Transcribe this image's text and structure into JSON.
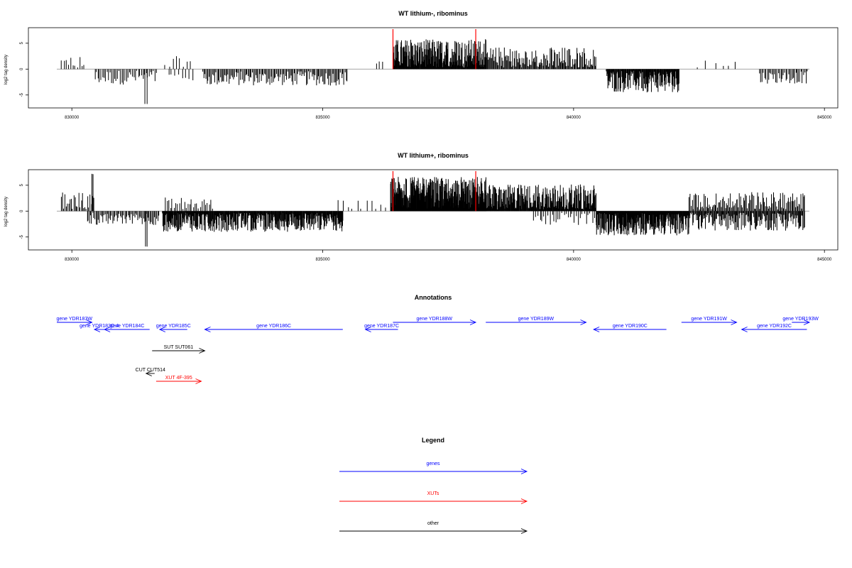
{
  "chart_data": [
    {
      "type": "bar",
      "title": "WT lithium-, ribominus",
      "xlabel": "",
      "ylabel": "log2 tag density",
      "xlim": [
        829700,
        844700
      ],
      "ylim": [
        -7.5,
        8
      ],
      "x_ticks": [
        830000,
        835000,
        840000,
        845000
      ],
      "x_tick_labels": [
        "830000",
        "835000",
        "840000",
        "845000"
      ],
      "y_ticks": [
        -5,
        0,
        5
      ],
      "y_tick_labels": [
        "-5",
        "0",
        "5"
      ],
      "baseline": 0,
      "region_markers": [
        836400,
        838050
      ],
      "region_marker_color": "#ff0000",
      "bar_color": "#000000",
      "segments": [
        {
          "x": [
            829780,
            830250
          ],
          "mean": 1.2,
          "amp": 1.5,
          "spacing": 45,
          "sign": 1
        },
        {
          "x": [
            830450,
            831700
          ],
          "mean": -1.6,
          "amp": 1.4,
          "spacing": 30,
          "sign": -1
        },
        {
          "x": [
            831450,
            831500
          ],
          "mean": -6.8,
          "amp": 0.1,
          "spacing": 40,
          "sign": -1
        },
        {
          "x": [
            831850,
            832400
          ],
          "mean": 1.0,
          "amp": 1.5,
          "spacing": 70,
          "sign": 1
        },
        {
          "x": [
            831900,
            832400
          ],
          "mean": -1.4,
          "amp": 1.0,
          "spacing": 70,
          "sign": -1
        },
        {
          "x": [
            832600,
            835500
          ],
          "mean": -1.8,
          "amp": 1.4,
          "spacing": 22,
          "sign": -1
        },
        {
          "x": [
            836050,
            836200
          ],
          "mean": 1.5,
          "amp": 1.5,
          "spacing": 60,
          "sign": 1
        },
        {
          "x": [
            836400,
            838250
          ],
          "mean": 2.8,
          "amp": 3.0,
          "spacing": 8,
          "sign": 1
        },
        {
          "x": [
            838250,
            840450
          ],
          "mean": 1.8,
          "amp": 2.5,
          "spacing": 16,
          "sign": 1
        },
        {
          "x": [
            840650,
            842100
          ],
          "mean": -2.3,
          "amp": 2.2,
          "spacing": 10,
          "sign": -1
        },
        {
          "x": [
            842450,
            843300
          ],
          "mean": 1.0,
          "amp": 1.2,
          "spacing": 150,
          "sign": 1
        },
        {
          "x": [
            843700,
            844650
          ],
          "mean": -1.6,
          "amp": 1.2,
          "spacing": 25,
          "sign": -1
        }
      ]
    },
    {
      "type": "bar",
      "title": "WT lithium+, ribominus",
      "xlabel": "",
      "ylabel": "log2 tag density",
      "xlim": [
        829700,
        844700
      ],
      "ylim": [
        -7.5,
        8
      ],
      "x_ticks": [
        830000,
        835000,
        840000,
        845000
      ],
      "x_tick_labels": [
        "830000",
        "835000",
        "840000",
        "845000"
      ],
      "y_ticks": [
        -5,
        0,
        5
      ],
      "y_tick_labels": [
        "-5",
        "0",
        "5"
      ],
      "baseline": 0,
      "region_markers": [
        836400,
        838050
      ],
      "region_marker_color": "#ff0000",
      "bar_color": "#000000",
      "segments": [
        {
          "x": [
            829780,
            830450
          ],
          "mean": 1.6,
          "amp": 2.2,
          "spacing": 25,
          "sign": 1
        },
        {
          "x": [
            830380,
            830420
          ],
          "mean": 7.2,
          "amp": 0.1,
          "spacing": 40,
          "sign": 1
        },
        {
          "x": [
            830300,
            831750
          ],
          "mean": -1.4,
          "amp": 1.3,
          "spacing": 22,
          "sign": -1
        },
        {
          "x": [
            831450,
            831500
          ],
          "mean": -6.8,
          "amp": 0.1,
          "spacing": 40,
          "sign": -1
        },
        {
          "x": [
            831850,
            832800
          ],
          "mean": 1.3,
          "amp": 1.5,
          "spacing": 35,
          "sign": 1
        },
        {
          "x": [
            831800,
            835400
          ],
          "mean": -2.0,
          "amp": 2.0,
          "spacing": 9,
          "sign": -1
        },
        {
          "x": [
            835300,
            836200
          ],
          "mean": 1.0,
          "amp": 1.2,
          "spacing": 90,
          "sign": 1
        },
        {
          "x": [
            836350,
            838250
          ],
          "mean": 3.2,
          "amp": 3.4,
          "spacing": 5,
          "sign": 1
        },
        {
          "x": [
            838250,
            840450
          ],
          "mean": 2.4,
          "amp": 2.8,
          "spacing": 9,
          "sign": 1
        },
        {
          "x": [
            839200,
            840450
          ],
          "mean": -1.5,
          "amp": 1.2,
          "spacing": 40,
          "sign": -1
        },
        {
          "x": [
            840450,
            842300
          ],
          "mean": -2.3,
          "amp": 2.4,
          "spacing": 7,
          "sign": -1
        },
        {
          "x": [
            842300,
            844600
          ],
          "mean": 1.7,
          "amp": 2.0,
          "spacing": 20,
          "sign": 1
        },
        {
          "x": [
            842300,
            844600
          ],
          "mean": -1.8,
          "amp": 2.0,
          "spacing": 14,
          "sign": -1
        }
      ]
    }
  ],
  "annotations": {
    "title": "Annotations",
    "xlim": [
      829700,
      844700
    ],
    "features": [
      {
        "label": "gene YDR183W",
        "start": 829700,
        "end": 830400,
        "row": 1,
        "strand": "+",
        "color": "#0000ff"
      },
      {
        "label": "gene YDR183C-A",
        "start": 830450,
        "end": 830650,
        "row": 2,
        "strand": "-",
        "color": "#0000ff"
      },
      {
        "label": "gene YDR184C",
        "start": 830650,
        "end": 831550,
        "row": 2,
        "strand": "-",
        "color": "#0000ff"
      },
      {
        "label": "gene YDR185C",
        "start": 831750,
        "end": 832300,
        "row": 2,
        "strand": "-",
        "color": "#0000ff"
      },
      {
        "label": "gene YDR186C",
        "start": 832650,
        "end": 835400,
        "row": 2,
        "strand": "-",
        "color": "#0000ff"
      },
      {
        "label": "gene YDR187C",
        "start": 835850,
        "end": 836500,
        "row": 2,
        "strand": "-",
        "color": "#0000ff"
      },
      {
        "label": "gene YDR188W",
        "start": 836400,
        "end": 838050,
        "row": 1,
        "strand": "+",
        "color": "#0000ff"
      },
      {
        "label": "gene YDR189W",
        "start": 838250,
        "end": 840250,
        "row": 1,
        "strand": "+",
        "color": "#0000ff"
      },
      {
        "label": "gene YDR190C",
        "start": 840400,
        "end": 841850,
        "row": 2,
        "strand": "-",
        "color": "#0000ff"
      },
      {
        "label": "gene YDR191W",
        "start": 842150,
        "end": 843250,
        "row": 1,
        "strand": "+",
        "color": "#0000ff"
      },
      {
        "label": "gene YDR192C",
        "start": 843350,
        "end": 844650,
        "row": 2,
        "strand": "-",
        "color": "#0000ff"
      },
      {
        "label": "gene YDR193W",
        "start": 844350,
        "end": 844700,
        "row": 1,
        "strand": "+",
        "color": "#0000ff"
      },
      {
        "label": "SUT SUT061",
        "start": 831600,
        "end": 832650,
        "row": 4,
        "strand": "+",
        "color": "#000000"
      },
      {
        "label": "CUT CUT514",
        "start": 831480,
        "end": 831650,
        "row": 6,
        "strand": "-",
        "color": "#000000"
      },
      {
        "label": "XUT 4F-395",
        "start": 831680,
        "end": 832580,
        "row": 7,
        "strand": "+",
        "color": "#ff0000"
      }
    ]
  },
  "legend": {
    "title": "Legend",
    "items": [
      {
        "label": "genes",
        "color": "#0000ff"
      },
      {
        "label": "XUTs",
        "color": "#ff0000"
      },
      {
        "label": "other",
        "color": "#000000"
      }
    ]
  }
}
